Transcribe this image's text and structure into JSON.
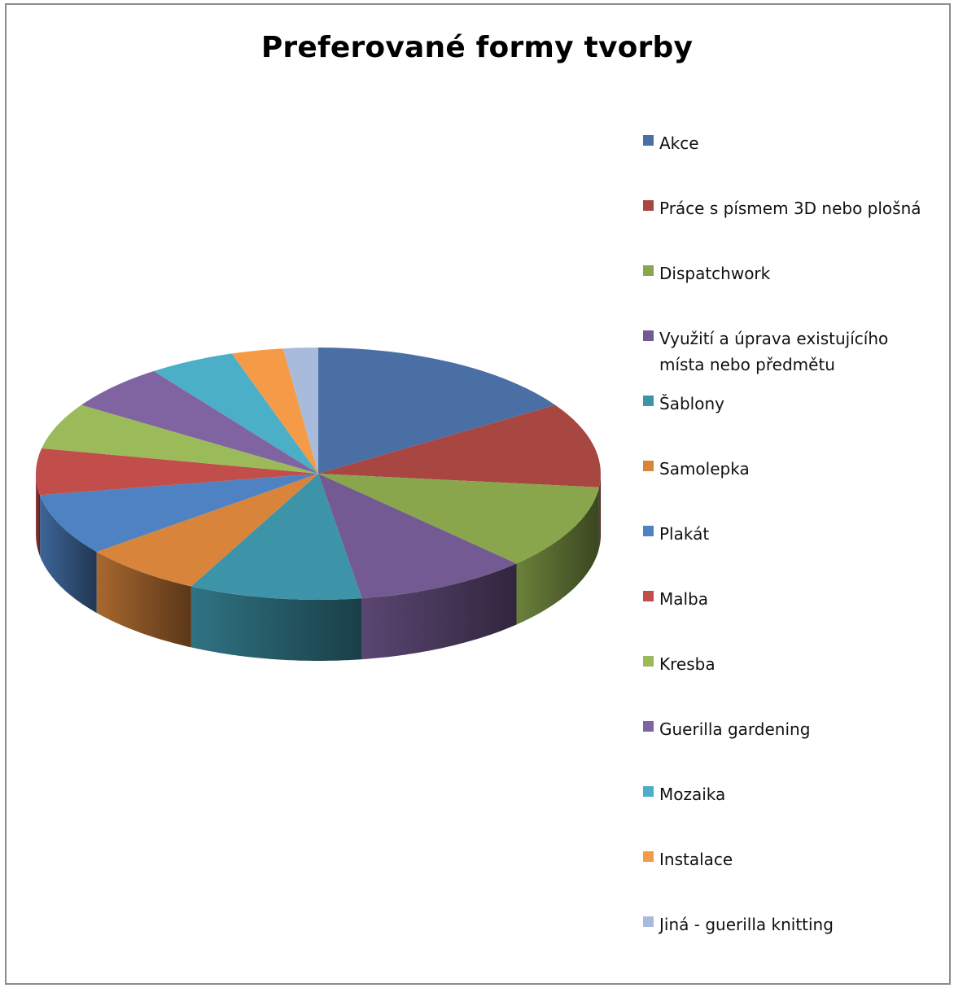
{
  "chart_data": {
    "type": "pie",
    "title": "Preferované formy tvorby",
    "is_3d": true,
    "legend_position": "right",
    "slices": [
      {
        "label": "Akce",
        "value": 16,
        "color": "#4A6FA5"
      },
      {
        "label": "Práce s písmem 3D nebo plošná",
        "value": 11,
        "color": "#A84641"
      },
      {
        "label": "Dispatchwork",
        "value": 11,
        "color": "#89A64C"
      },
      {
        "label": "Využití a úprava existujícího místa nebo předmětu",
        "value": 10,
        "color": "#745A92"
      },
      {
        "label": "Šablony",
        "value": 10,
        "color": "#3D94A8"
      },
      {
        "label": "Samolepka",
        "value": 7,
        "color": "#D8843B"
      },
      {
        "label": "Plakát",
        "value": 8,
        "color": "#4E82C3"
      },
      {
        "label": "Malba",
        "value": 6,
        "color": "#C14E4B"
      },
      {
        "label": "Kresba",
        "value": 6,
        "color": "#9BBA59"
      },
      {
        "label": "Guerilla gardening",
        "value": 6,
        "color": "#8064A2"
      },
      {
        "label": "Mozaika",
        "value": 5,
        "color": "#4BAFC7"
      },
      {
        "label": "Instalace",
        "value": 3,
        "color": "#F59B47"
      },
      {
        "label": "Jiná - guerilla knitting",
        "value": 2,
        "color": "#A9BBDA"
      }
    ]
  }
}
